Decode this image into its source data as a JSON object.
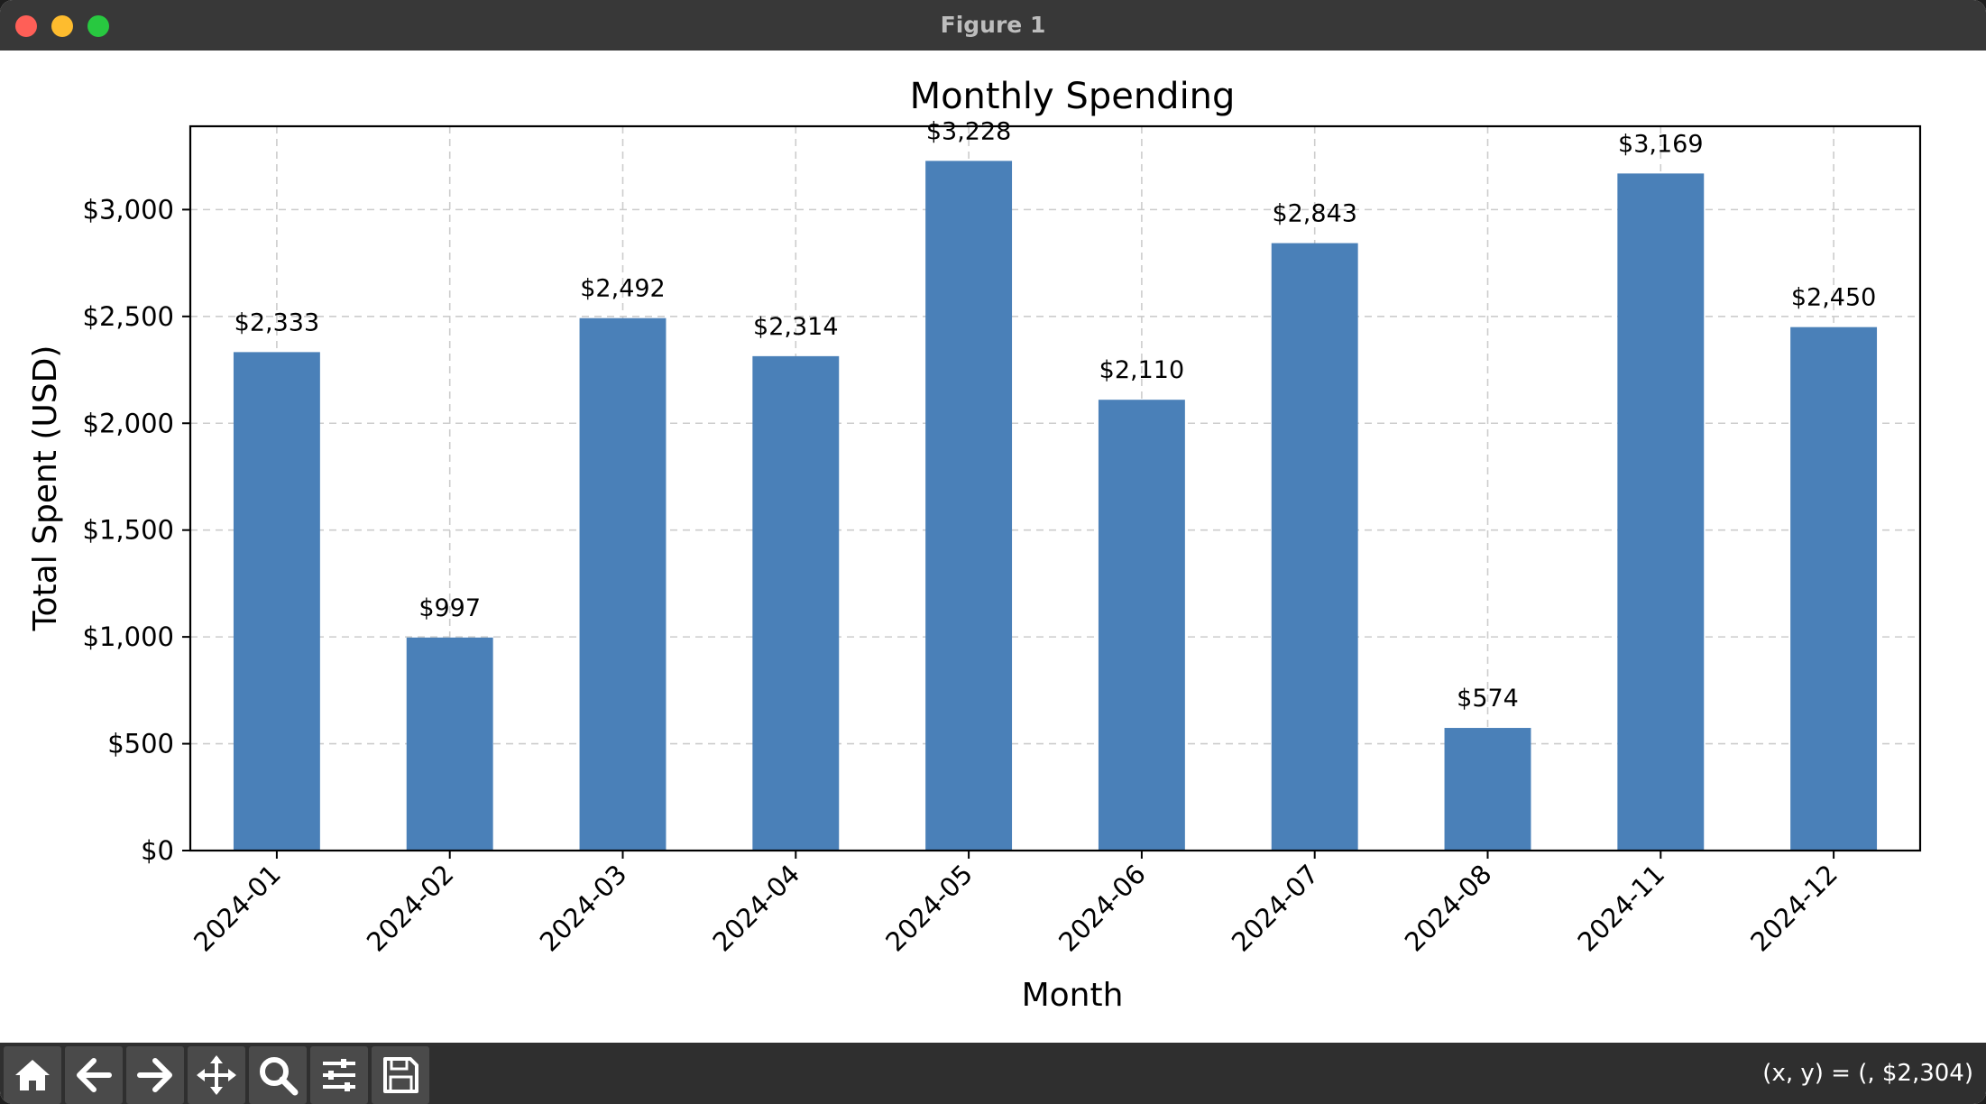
{
  "window": {
    "title": "Figure 1"
  },
  "toolbar": {
    "buttons": [
      {
        "name": "home-icon"
      },
      {
        "name": "back-arrow-icon"
      },
      {
        "name": "forward-arrow-icon"
      },
      {
        "name": "pan-move-icon"
      },
      {
        "name": "zoom-magnifier-icon"
      },
      {
        "name": "configure-subplots-icon"
      },
      {
        "name": "save-floppy-icon"
      }
    ],
    "coordinates": "(x, y) = (, $2,304)"
  },
  "colors": {
    "bar": "#4a80b8",
    "grid": "#cccccc",
    "titlebar": "#383838",
    "toolbar": "#2f2f2f"
  },
  "chart_data": {
    "type": "bar",
    "title": "Monthly Spending",
    "xlabel": "Month",
    "ylabel": "Total Spent (USD)",
    "categories": [
      "2024-01",
      "2024-02",
      "2024-03",
      "2024-04",
      "2024-05",
      "2024-06",
      "2024-07",
      "2024-08",
      "2024-11",
      "2024-12"
    ],
    "values": [
      2333,
      997,
      2492,
      2314,
      3228,
      2110,
      2843,
      574,
      3169,
      2450
    ],
    "value_labels": [
      "$2,333",
      "$997",
      "$2,492",
      "$2,314",
      "$3,228",
      "$2,110",
      "$2,843",
      "$574",
      "$3,169",
      "$2,450"
    ],
    "ylim": [
      0,
      3390
    ],
    "yticks": [
      0,
      500,
      1000,
      1500,
      2000,
      2500,
      3000
    ],
    "ytick_labels": [
      "$0",
      "$500",
      "$1,000",
      "$1,500",
      "$2,000",
      "$2,500",
      "$3,000"
    ],
    "grid": true,
    "grid_style": "dashed",
    "xtick_rotation": 45
  }
}
